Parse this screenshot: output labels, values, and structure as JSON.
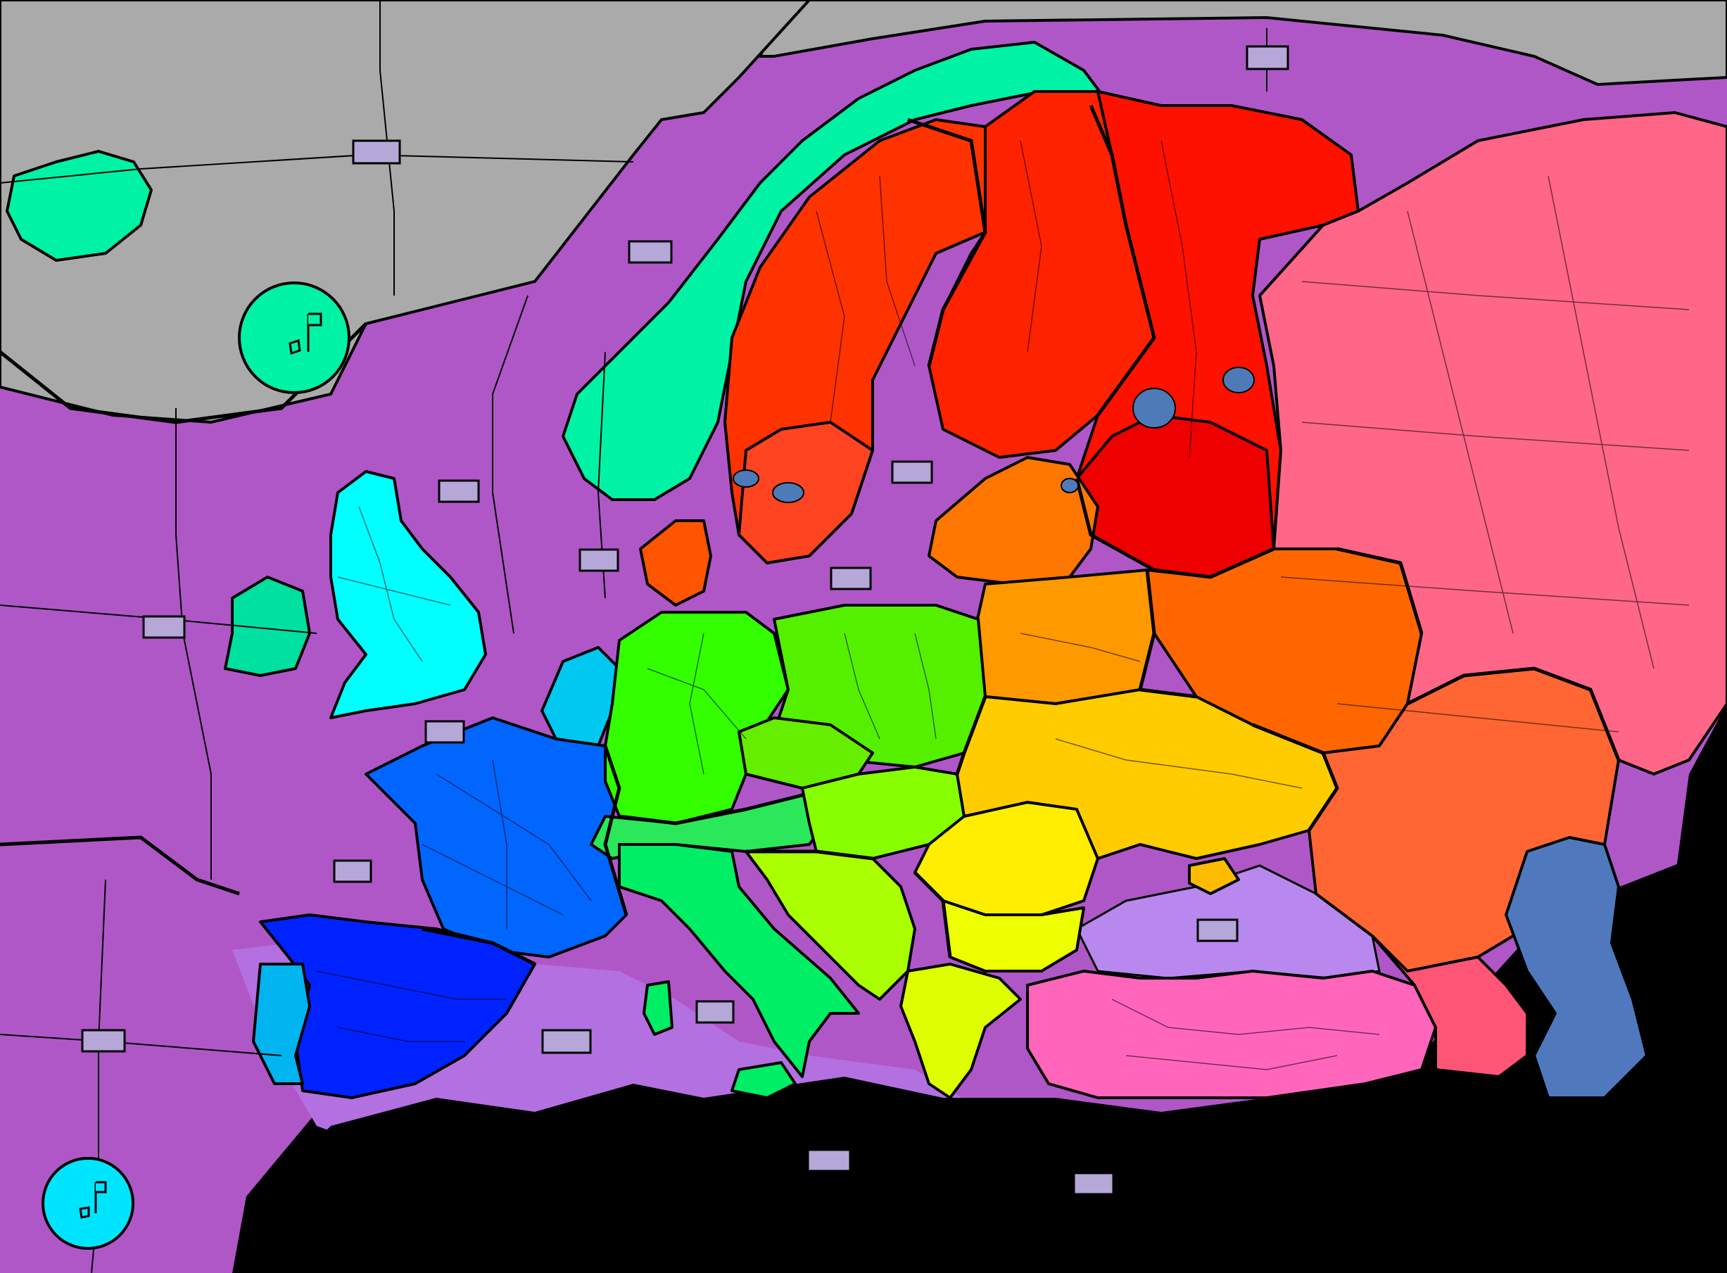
{
  "map": {
    "colors": {
      "ocean": "#b057c8",
      "ocean_deep": "#a94fc4",
      "med_sea": "#b370e0",
      "black_sea": "#b888ee",
      "arctic": "#aaaaaa",
      "void": "#000000",
      "caspian": "#5079bd",
      "lakes": "#4f7ab8",
      "nordic_teal": "#00f2a5",
      "uk_cyan": "#00ffff",
      "ireland": "#00e0a0",
      "benelux": "#00c8f0",
      "france_blue": "#0066ff",
      "iberia_blue": "#0022ff",
      "portugal": "#00b4f0",
      "germany_green": "#33ff00",
      "poland_green": "#55f000",
      "czech_green": "#66ee00",
      "austria_green": "#2ae85a",
      "italy_green": "#00ee66",
      "balkans_lime": "#aaff00",
      "hungary_lime": "#88ff00",
      "romania_yellow": "#ffee00",
      "bulgaria_yellow": "#eeff00",
      "greece_yellow": "#ddff00",
      "ukraine_orange": "#ffcc00",
      "belarus_orange": "#ff9900",
      "baltic_orange": "#ff7700",
      "russia_west": "#ff6600",
      "russia_south": "#ff6633",
      "russia_far": "#ff6688",
      "finland_red": "#ff2200",
      "sweden_red": "#ff3300",
      "karelia_red": "#ee0000",
      "turkey_pink": "#ff66bb",
      "caucasus": "#ff5577"
    },
    "legend_markers": [
      {
        "icon": "flag-marker-icon",
        "color": "#00f2a5"
      },
      {
        "icon": "flag-marker-icon",
        "color": "#00e5ff"
      }
    ],
    "sea_boxes_count_label": ""
  }
}
